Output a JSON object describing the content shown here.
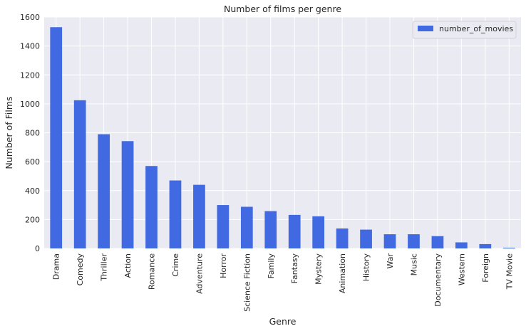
{
  "chart_data": {
    "type": "bar",
    "title": "Number of films per genre",
    "xlabel": "Genre",
    "ylabel": "Number of Films",
    "ylim": [
      0,
      1600
    ],
    "yticks": [
      0,
      200,
      400,
      600,
      800,
      1000,
      1200,
      1400,
      1600
    ],
    "grid": true,
    "legend_position": "top-right",
    "categories": [
      "Drama",
      "Comedy",
      "Thriller",
      "Action",
      "Romance",
      "Crime",
      "Adventure",
      "Horror",
      "Science Fiction",
      "Family",
      "Fantasy",
      "Mystery",
      "Animation",
      "History",
      "War",
      "Music",
      "Documentary",
      "Western",
      "Foreign",
      "TV Movie"
    ],
    "series": [
      {
        "name": "number_of_movies",
        "color": "#4169e1",
        "values": [
          1530,
          1025,
          790,
          742,
          570,
          470,
          440,
          300,
          288,
          258,
          232,
          222,
          138,
          130,
          98,
          98,
          85,
          42,
          30,
          5
        ]
      }
    ],
    "background_color": "#eaeaf2",
    "grid_color": "#ffffff"
  }
}
